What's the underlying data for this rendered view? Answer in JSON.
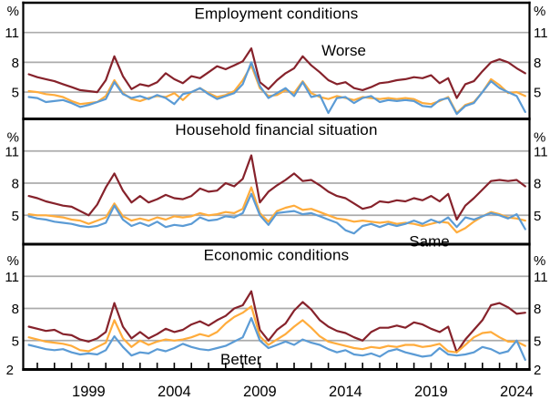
{
  "figure": {
    "y_axis_symbol": "%",
    "bottom_tick_label": "2",
    "x_tick_start": 1996,
    "x_tick_end": 2024,
    "x_tick_step": 1,
    "x_axis_labels": [
      "1999",
      "2004",
      "2009",
      "2014",
      "2019",
      "2024"
    ],
    "grid_on": true,
    "legend_position": "inline-annotations"
  },
  "colors": {
    "worse": "#86222B",
    "same": "#FFAC3C",
    "better": "#5B9BD5",
    "gridline": "#ABABAB",
    "axis": "#000000"
  },
  "chart_data": [
    {
      "type": "line",
      "title": "Employment conditions",
      "ylabel": "%",
      "ylim": [
        2.3,
        14.0
      ],
      "gridlines": [
        5,
        8,
        11
      ],
      "y_tick_labels": [
        "5",
        "8",
        "11"
      ],
      "x": [
        1995.5,
        1996,
        1996.5,
        1997,
        1997.5,
        1998,
        1998.5,
        1999,
        1999.5,
        2000,
        2000.5,
        2001,
        2001.5,
        2002,
        2002.5,
        2003,
        2003.5,
        2004,
        2004.5,
        2005,
        2005.5,
        2006,
        2006.5,
        2007,
        2007.5,
        2008,
        2008.5,
        2009,
        2009.5,
        2010,
        2010.5,
        2011,
        2011.5,
        2012,
        2012.5,
        2013,
        2013.5,
        2014,
        2014.5,
        2015,
        2015.5,
        2016,
        2016.5,
        2017,
        2017.5,
        2018,
        2018.5,
        2019,
        2019.5,
        2020,
        2020.5,
        2021,
        2021.5,
        2022,
        2022.5,
        2023,
        2023.5,
        2024,
        2024.5
      ],
      "series": [
        {
          "name": "Worse",
          "color": "#86222B",
          "values": [
            6.8,
            6.5,
            6.3,
            6.1,
            5.8,
            5.5,
            5.2,
            5.1,
            5.0,
            6.2,
            8.6,
            6.6,
            5.3,
            5.8,
            5.6,
            6.0,
            6.9,
            6.3,
            5.9,
            6.6,
            6.4,
            7.0,
            7.6,
            7.3,
            7.7,
            8.1,
            9.4,
            6.0,
            5.3,
            6.2,
            6.9,
            7.4,
            8.6,
            7.7,
            7.0,
            6.2,
            5.8,
            6.0,
            5.4,
            5.2,
            5.5,
            5.9,
            6.0,
            6.2,
            6.3,
            6.5,
            6.4,
            6.7,
            5.9,
            6.4,
            4.4,
            5.8,
            6.1,
            7.1,
            8.0,
            8.3,
            8.0,
            7.4,
            6.9
          ]
        },
        {
          "name": "Same",
          "color": "#FFAC3C",
          "values": [
            5.1,
            5.0,
            4.8,
            4.7,
            4.5,
            4.1,
            3.8,
            3.9,
            4.0,
            4.6,
            6.2,
            4.9,
            4.3,
            4.1,
            4.4,
            4.6,
            4.5,
            4.9,
            4.2,
            5.0,
            5.4,
            4.9,
            4.5,
            4.7,
            5.1,
            6.2,
            7.7,
            5.4,
            4.6,
            4.7,
            5.2,
            4.9,
            6.1,
            4.9,
            4.5,
            4.3,
            4.6,
            4.4,
            4.2,
            4.5,
            4.4,
            4.3,
            4.4,
            4.3,
            4.4,
            4.3,
            3.9,
            3.8,
            4.1,
            4.5,
            2.9,
            3.7,
            4.0,
            5.0,
            6.3,
            5.7,
            4.9,
            5.0,
            4.6
          ]
        },
        {
          "name": "Better",
          "color": "#5B9BD5",
          "values": [
            4.5,
            4.4,
            4.0,
            4.1,
            4.2,
            3.9,
            3.5,
            3.7,
            4.0,
            4.3,
            6.0,
            4.8,
            4.4,
            4.6,
            4.3,
            4.7,
            4.4,
            3.8,
            4.8,
            5.0,
            5.4,
            4.8,
            4.3,
            4.6,
            4.9,
            5.8,
            8.0,
            5.6,
            4.4,
            4.9,
            5.4,
            4.6,
            6.0,
            4.5,
            4.7,
            2.9,
            4.4,
            4.5,
            3.9,
            4.4,
            4.6,
            4.0,
            4.2,
            4.1,
            4.2,
            4.1,
            3.6,
            3.5,
            4.2,
            4.4,
            2.8,
            3.6,
            3.9,
            5.0,
            6.1,
            5.4,
            5.0,
            4.6,
            3.0
          ]
        }
      ],
      "annotation": {
        "text": "Worse",
        "series": "Worse",
        "color": "#86222B",
        "x": 2013.9,
        "y": 9.2
      }
    },
    {
      "type": "line",
      "title": "Household financial situation",
      "ylabel": "%",
      "ylim": [
        2.3,
        14.0
      ],
      "gridlines": [
        5,
        8,
        11
      ],
      "y_tick_labels": [
        "5",
        "8",
        "11"
      ],
      "x": [
        1995.5,
        1996,
        1996.5,
        1997,
        1997.5,
        1998,
        1998.5,
        1999,
        1999.5,
        2000,
        2000.5,
        2001,
        2001.5,
        2002,
        2002.5,
        2003,
        2003.5,
        2004,
        2004.5,
        2005,
        2005.5,
        2006,
        2006.5,
        2007,
        2007.5,
        2008,
        2008.5,
        2009,
        2009.5,
        2010,
        2010.5,
        2011,
        2011.5,
        2012,
        2012.5,
        2013,
        2013.5,
        2014,
        2014.5,
        2015,
        2015.5,
        2016,
        2016.5,
        2017,
        2017.5,
        2018,
        2018.5,
        2019,
        2019.5,
        2020,
        2020.5,
        2021,
        2021.5,
        2022,
        2022.5,
        2023,
        2023.5,
        2024,
        2024.5
      ],
      "series": [
        {
          "name": "Worse",
          "color": "#86222B",
          "values": [
            6.8,
            6.6,
            6.3,
            6.1,
            5.9,
            5.8,
            5.4,
            5.0,
            6.0,
            7.6,
            8.9,
            7.3,
            6.2,
            6.8,
            6.2,
            6.5,
            6.9,
            6.6,
            6.5,
            6.8,
            7.5,
            7.2,
            7.3,
            8.0,
            7.7,
            8.4,
            10.6,
            6.2,
            7.2,
            7.8,
            8.3,
            8.9,
            8.2,
            8.3,
            7.8,
            7.2,
            6.8,
            6.6,
            6.1,
            5.6,
            5.8,
            6.3,
            6.2,
            6.4,
            6.3,
            6.6,
            6.4,
            6.8,
            6.3,
            7.0,
            4.6,
            5.9,
            6.6,
            7.4,
            8.2,
            8.3,
            8.2,
            8.3,
            7.7
          ]
        },
        {
          "name": "Same",
          "color": "#FFAC3C",
          "values": [
            5.1,
            5.0,
            5.0,
            4.9,
            4.8,
            4.6,
            4.5,
            4.2,
            4.5,
            4.8,
            6.1,
            4.9,
            4.5,
            4.7,
            4.5,
            4.8,
            4.6,
            4.9,
            4.8,
            4.9,
            5.2,
            5.0,
            5.1,
            5.3,
            5.2,
            5.6,
            7.6,
            5.2,
            4.4,
            5.4,
            5.7,
            5.9,
            5.5,
            5.6,
            5.3,
            5.0,
            4.7,
            4.6,
            4.4,
            4.5,
            4.4,
            4.3,
            4.4,
            4.2,
            4.3,
            4.2,
            4.0,
            4.2,
            4.4,
            4.3,
            3.4,
            3.8,
            4.4,
            4.9,
            5.3,
            5.1,
            4.8,
            4.7,
            4.5
          ]
        },
        {
          "name": "Better",
          "color": "#5B9BD5",
          "values": [
            4.9,
            4.7,
            4.6,
            4.4,
            4.3,
            4.2,
            4.0,
            3.9,
            4.0,
            4.3,
            5.9,
            4.6,
            4.0,
            4.3,
            4.0,
            4.4,
            3.9,
            4.1,
            4.0,
            4.2,
            4.8,
            4.5,
            4.6,
            4.9,
            4.8,
            5.2,
            7.0,
            5.0,
            4.1,
            5.2,
            5.3,
            5.4,
            5.1,
            5.2,
            4.9,
            4.6,
            4.3,
            3.6,
            3.3,
            4.0,
            4.2,
            3.9,
            4.2,
            4.0,
            4.2,
            4.5,
            4.2,
            4.6,
            4.3,
            4.8,
            3.9,
            4.8,
            4.6,
            4.9,
            5.2,
            5.0,
            4.7,
            5.1,
            3.7
          ]
        }
      ],
      "annotation": {
        "text": "Same",
        "series": "Same",
        "color": "#FFAC3C",
        "x": 2018.9,
        "y": 2.55
      }
    },
    {
      "type": "line",
      "title": "Economic conditions",
      "ylabel": "%",
      "ylim": [
        2.3,
        14.0
      ],
      "gridlines": [
        5,
        8,
        11
      ],
      "y_tick_labels": [
        "5",
        "8",
        "11"
      ],
      "x": [
        1995.5,
        1996,
        1996.5,
        1997,
        1997.5,
        1998,
        1998.5,
        1999,
        1999.5,
        2000,
        2000.5,
        2001,
        2001.5,
        2002,
        2002.5,
        2003,
        2003.5,
        2004,
        2004.5,
        2005,
        2005.5,
        2006,
        2006.5,
        2007,
        2007.5,
        2008,
        2008.5,
        2009,
        2009.5,
        2010,
        2010.5,
        2011,
        2011.5,
        2012,
        2012.5,
        2013,
        2013.5,
        2014,
        2014.5,
        2015,
        2015.5,
        2016,
        2016.5,
        2017,
        2017.5,
        2018,
        2018.5,
        2019,
        2019.5,
        2020,
        2020.5,
        2021,
        2021.5,
        2022,
        2022.5,
        2023,
        2023.5,
        2024,
        2024.5
      ],
      "series": [
        {
          "name": "Worse",
          "color": "#86222B",
          "values": [
            6.3,
            6.1,
            5.9,
            6.0,
            5.6,
            5.5,
            5.1,
            4.9,
            5.2,
            5.8,
            8.5,
            6.3,
            5.2,
            5.8,
            5.2,
            5.6,
            6.1,
            5.8,
            6.0,
            6.5,
            6.8,
            6.4,
            6.9,
            7.3,
            8.0,
            8.3,
            9.6,
            6.0,
            5.0,
            6.0,
            6.6,
            7.8,
            8.6,
            7.9,
            6.9,
            6.3,
            5.9,
            5.7,
            5.3,
            5.0,
            5.8,
            6.2,
            6.2,
            6.4,
            6.2,
            6.7,
            6.5,
            6.1,
            5.8,
            6.3,
            3.9,
            5.1,
            6.0,
            6.9,
            8.3,
            8.5,
            8.1,
            7.5,
            7.6
          ]
        },
        {
          "name": "Same",
          "color": "#FFAC3C",
          "values": [
            5.3,
            5.1,
            4.9,
            4.8,
            4.7,
            4.5,
            4.1,
            4.0,
            4.4,
            4.8,
            6.9,
            5.2,
            4.4,
            5.0,
            4.6,
            4.9,
            5.1,
            5.0,
            5.1,
            5.3,
            5.6,
            5.4,
            5.8,
            6.6,
            7.2,
            7.6,
            8.2,
            5.4,
            4.6,
            5.1,
            5.6,
            6.3,
            6.9,
            6.2,
            5.4,
            4.9,
            4.7,
            4.5,
            4.3,
            4.2,
            4.4,
            4.3,
            4.5,
            4.4,
            4.6,
            4.6,
            4.4,
            4.5,
            4.7,
            4.0,
            3.9,
            4.6,
            5.3,
            5.7,
            5.8,
            5.3,
            4.9,
            4.9,
            4.5
          ]
        },
        {
          "name": "Better",
          "color": "#5B9BD5",
          "values": [
            4.6,
            4.4,
            4.2,
            4.1,
            4.2,
            3.9,
            3.7,
            3.8,
            3.7,
            4.1,
            5.4,
            4.4,
            3.6,
            3.9,
            3.8,
            4.2,
            4.0,
            4.3,
            4.7,
            4.4,
            4.2,
            4.1,
            4.3,
            4.5,
            4.9,
            5.3,
            7.1,
            5.0,
            4.3,
            4.6,
            4.9,
            4.6,
            5.1,
            4.8,
            4.6,
            4.2,
            3.9,
            4.1,
            3.7,
            3.6,
            3.8,
            3.5,
            4.0,
            4.2,
            3.9,
            3.7,
            3.5,
            3.6,
            4.3,
            3.7,
            3.6,
            3.7,
            3.9,
            4.4,
            4.2,
            3.8,
            4.0,
            5.0,
            3.2
          ]
        }
      ],
      "annotation": {
        "text": "Better",
        "series": "Better",
        "color": "#5B9BD5",
        "x": 2007.9,
        "y": 3.25
      }
    }
  ]
}
